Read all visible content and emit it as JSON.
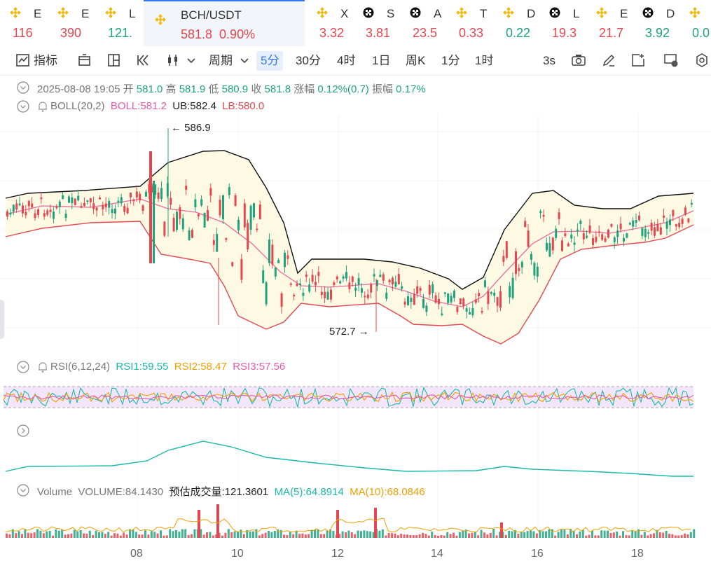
{
  "ticker": [
    {
      "symbol": "E",
      "value": "116",
      "icon": "binance-coin-icon",
      "trend": "down"
    },
    {
      "symbol": "E",
      "value": "390",
      "icon": "binance-coin-icon",
      "trend": "down"
    },
    {
      "symbol": "L",
      "value": "121.",
      "icon": "binance-coin-icon",
      "trend": "up"
    },
    {
      "symbol": "BCH/USDT",
      "value": "581.8  0.90%",
      "icon": "binance-coin-icon",
      "trend": "down",
      "active": true
    },
    {
      "symbol": "X",
      "value": "3.32",
      "icon": "binance-coin-icon",
      "trend": "down"
    },
    {
      "symbol": "S",
      "value": "3.81",
      "icon": "okx-icon",
      "trend": "down"
    },
    {
      "symbol": "A",
      "value": "23.5",
      "icon": "okx-icon",
      "trend": "down"
    },
    {
      "symbol": "T",
      "value": "0.33",
      "icon": "binance-coin-icon",
      "trend": "down"
    },
    {
      "symbol": "D",
      "value": "0.22",
      "icon": "binance-coin-icon",
      "trend": "up"
    },
    {
      "symbol": "L",
      "value": "19.3",
      "icon": "okx-icon",
      "trend": "down"
    },
    {
      "symbol": "E",
      "value": "21.7",
      "icon": "binance-coin-icon",
      "trend": "down"
    },
    {
      "symbol": "D",
      "value": "3.92",
      "icon": "okx-icon",
      "trend": "up"
    },
    {
      "symbol": "",
      "value": "0.0",
      "icon": "binance-coin-icon",
      "trend": "up"
    }
  ],
  "toolbar": {
    "indicators": "指标",
    "period": "周期",
    "intervals": [
      "5分",
      "30分",
      "4时",
      "1日",
      "周K",
      "1分",
      "1时"
    ],
    "active_interval": "5分",
    "refresh": "3s"
  },
  "ohlc": {
    "time": "2025-08-08 19:05",
    "open_label": "开",
    "open": "581.0",
    "high_label": "高",
    "high": "581.9",
    "low_label": "低",
    "low": "580.9",
    "close_label": "收",
    "close": "581.8",
    "change_label": "涨幅",
    "change": "0.12%(0.7)",
    "amp_label": "振幅",
    "amp": "0.17%"
  },
  "boll": {
    "name": "BOLL(20,2)",
    "mid": "BOLL:581.2",
    "ub": "UB:582.4",
    "lb": "LB:580.0"
  },
  "markers": {
    "high": "586.9",
    "low": "572.7"
  },
  "rsi": {
    "name": "RSI(6,12,24)",
    "rsi1": "RSI1:59.55",
    "rsi2": "RSI2:58.47",
    "rsi3": "RSI3:57.56"
  },
  "volume": {
    "name": "Volume",
    "vol": "VOLUME:84.1430",
    "est": "预估成交量:121.3601",
    "ma5": "MA(5):64.8914",
    "ma10": "MA(10):68.0846"
  },
  "x_axis": [
    "08",
    "10",
    "12",
    "14",
    "16",
    "18"
  ],
  "colors": {
    "up": "#1fa37f",
    "down": "#e4474f",
    "accent": "#3478f6",
    "boll_upper": "#111111",
    "boll_mid": "#e96aa0",
    "boll_lower": "#e4474f",
    "band_fill": "#fdf9e3",
    "rsi_fill": "#f3e6fb"
  }
}
